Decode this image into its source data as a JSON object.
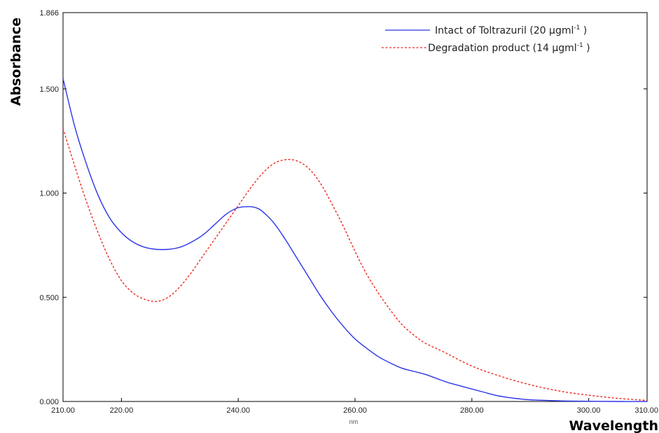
{
  "chart_data": {
    "type": "line",
    "xlabel": "Wavelength",
    "xunit": "nm",
    "ylabel": "Absorbance",
    "xlim": [
      210,
      310
    ],
    "ylim": [
      0,
      1.866
    ],
    "xticks": [
      "210.00",
      "220.00",
      "240.00",
      "260.00",
      "280.00",
      "300.00",
      "310.00"
    ],
    "xtick_values": [
      210,
      220,
      240,
      260,
      280,
      300,
      310
    ],
    "yticks": [
      "0.000",
      "0.500",
      "1.000",
      "1.500",
      "1.866"
    ],
    "ytick_values": [
      0,
      0.5,
      1.0,
      1.5,
      1.866
    ],
    "grid": false,
    "legend_position": "top-right",
    "series": [
      {
        "name": "Intact of Toltrazuril (20 µgml",
        "name_sup": "-1",
        "name_tail": " )",
        "color": "#2b35e8",
        "style": "solid",
        "x": [
          210,
          212,
          214,
          216,
          218,
          220,
          222,
          224,
          226,
          228,
          230,
          232,
          234,
          236,
          238,
          240,
          242,
          243,
          244,
          246,
          248,
          250,
          252,
          254,
          256,
          258,
          260,
          262,
          264,
          266,
          268,
          270,
          272,
          274,
          276,
          278,
          280,
          282,
          284,
          286,
          288,
          290,
          295,
          300,
          305,
          310
        ],
        "y": [
          1.55,
          1.32,
          1.14,
          0.99,
          0.88,
          0.81,
          0.765,
          0.74,
          0.73,
          0.73,
          0.74,
          0.765,
          0.8,
          0.85,
          0.9,
          0.93,
          0.935,
          0.93,
          0.915,
          0.86,
          0.78,
          0.69,
          0.6,
          0.51,
          0.43,
          0.36,
          0.3,
          0.255,
          0.215,
          0.185,
          0.16,
          0.145,
          0.13,
          0.11,
          0.09,
          0.075,
          0.06,
          0.045,
          0.03,
          0.02,
          0.013,
          0.008,
          0.003,
          0.001,
          0.0,
          0.0
        ]
      },
      {
        "name": "Degradation product (14 µgml",
        "name_sup": "-1",
        "name_tail": " )",
        "color": "#ee2a22",
        "style": "dashed",
        "x": [
          210,
          212,
          214,
          216,
          218,
          220,
          222,
          224,
          226,
          228,
          230,
          232,
          234,
          236,
          238,
          240,
          242,
          244,
          246,
          248,
          250,
          252,
          254,
          256,
          258,
          260,
          262,
          264,
          266,
          268,
          270,
          272,
          275,
          280,
          285,
          290,
          295,
          300,
          305,
          310
        ],
        "y": [
          1.31,
          1.13,
          0.96,
          0.81,
          0.68,
          0.58,
          0.52,
          0.49,
          0.48,
          0.5,
          0.55,
          0.62,
          0.7,
          0.78,
          0.86,
          0.94,
          1.02,
          1.09,
          1.14,
          1.16,
          1.155,
          1.12,
          1.05,
          0.95,
          0.84,
          0.72,
          0.61,
          0.52,
          0.44,
          0.37,
          0.32,
          0.28,
          0.24,
          0.17,
          0.12,
          0.08,
          0.05,
          0.03,
          0.015,
          0.005
        ]
      }
    ]
  }
}
